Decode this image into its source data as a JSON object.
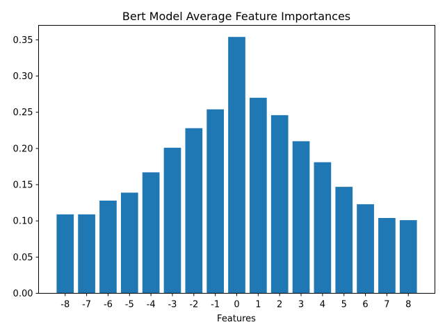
{
  "chart_data": {
    "type": "bar",
    "title": "Bert Model Average Feature Importances",
    "xlabel": "Features",
    "ylabel": "",
    "categories": [
      "-8",
      "-7",
      "-6",
      "-5",
      "-4",
      "-3",
      "-2",
      "-1",
      "0",
      "1",
      "2",
      "3",
      "4",
      "5",
      "6",
      "7",
      "8"
    ],
    "values": [
      0.109,
      0.109,
      0.128,
      0.139,
      0.167,
      0.201,
      0.228,
      0.254,
      0.354,
      0.27,
      0.246,
      0.21,
      0.181,
      0.147,
      0.123,
      0.104,
      0.101
    ],
    "ylim": [
      0,
      0.37
    ],
    "yticks": [
      0.0,
      0.05,
      0.1,
      0.15,
      0.2,
      0.25,
      0.3,
      0.35
    ],
    "ytick_labels": [
      "0.00",
      "0.05",
      "0.10",
      "0.15",
      "0.20",
      "0.25",
      "0.30",
      "0.35"
    ],
    "bar_color": "#1f77b4",
    "grid": false,
    "legend": false
  }
}
